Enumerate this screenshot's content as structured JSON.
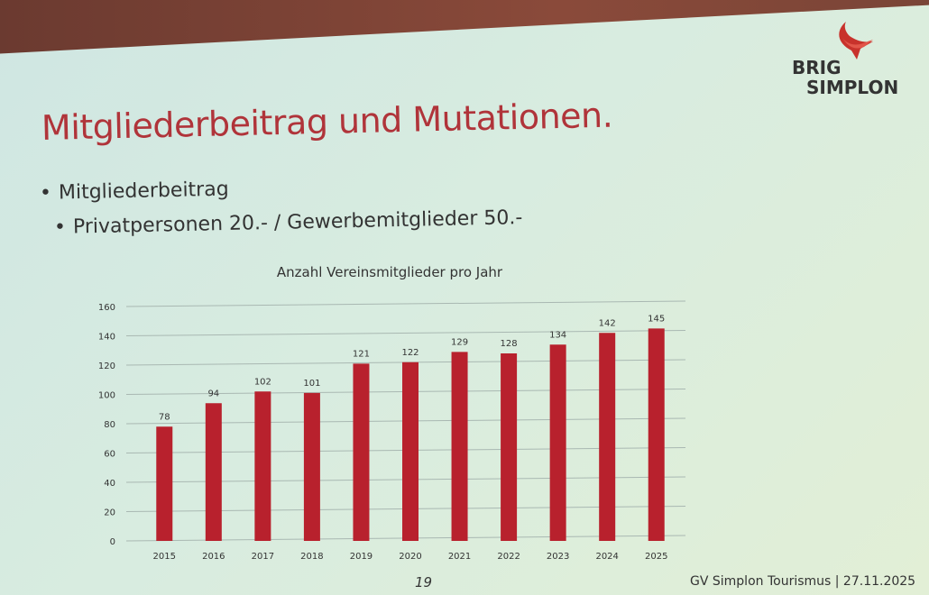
{
  "slide": {
    "title": "Mitgliederbeitrag und Mutationen.",
    "bullets": [
      "Mitgliederbeitrag",
      "Privatpersonen 20.- / Gewerbemitglieder 50.-"
    ],
    "logo": {
      "line1": "BRIG",
      "line2": "SIMPLON"
    },
    "page_number": "19",
    "footer": "GV Simplon Tourismus | 27.11.2025"
  },
  "colors": {
    "title": "#b0343a",
    "bar": "#b8212d"
  },
  "chart_data": {
    "type": "bar",
    "title": "Anzahl Vereinsmitglieder pro Jahr",
    "categories": [
      "2015",
      "2016",
      "2017",
      "2018",
      "2019",
      "2020",
      "2021",
      "2022",
      "2023",
      "2024",
      "2025"
    ],
    "values": [
      78,
      94,
      102,
      101,
      121,
      122,
      129,
      128,
      134,
      142,
      145
    ],
    "ylim": [
      0,
      160
    ],
    "yticks": [
      0,
      20,
      40,
      60,
      80,
      100,
      120,
      140,
      160
    ],
    "grid": true,
    "xlabel": "",
    "ylabel": ""
  }
}
